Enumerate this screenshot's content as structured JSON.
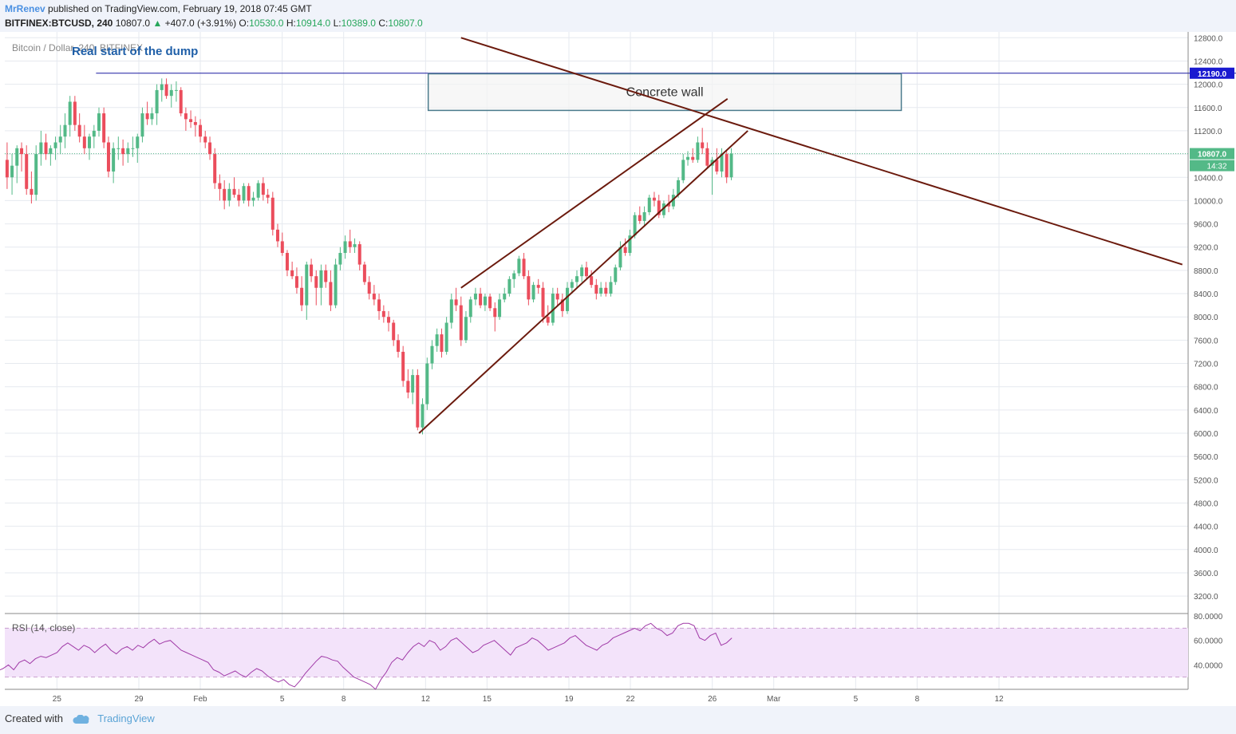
{
  "header": {
    "author": "MrRenev",
    "published": "published on TradingView.com, February 19, 2018 07:45 GMT",
    "symbol": "BITFINEX:BTCUSD, 240",
    "last": "10807.0",
    "change": "+407.0 (+3.91%)",
    "open_label": "O:",
    "open": "10530.0",
    "high_label": "H:",
    "high": "10914.0",
    "low_label": "L:",
    "low": "10389.0",
    "close_label": "C:",
    "close": "10807.0"
  },
  "footer": {
    "created": "Created with",
    "brand": "TradingView",
    "logo_icon": "tradingview-cloud-icon"
  },
  "chart_data": {
    "type": "candlestick",
    "symbol_label": "Bitcoin / Dollar, 240, BITFINEX",
    "ylim": [
      2900,
      12900
    ],
    "y_ticks": [
      "12800.0",
      "12400.0",
      "12000.0",
      "11600.0",
      "11200.0",
      "10800.0",
      "10400.0",
      "10000.0",
      "9600.0",
      "9200.0",
      "8800.0",
      "8400.0",
      "8000.0",
      "7600.0",
      "7200.0",
      "6800.0",
      "6400.0",
      "6000.0",
      "5600.0",
      "5200.0",
      "4800.0",
      "4400.0",
      "4000.0",
      "3600.0",
      "3200.0"
    ],
    "x_ticks": [
      "25",
      "29",
      "Feb",
      "5",
      "8",
      "12",
      "15",
      "19",
      "22",
      "26",
      "Mar",
      "5",
      "8",
      "12"
    ],
    "x_range_days": [
      -1.75,
      39.1
    ],
    "last_price": 10807.0,
    "last_price_label": "10807.0",
    "countdown_label": "14:32",
    "resistance_level": 12190.0,
    "resistance_label": "12190.0",
    "colors": {
      "up": "#53b987",
      "down": "#eb4d5c",
      "trend": "#6b1a0d",
      "resistance": "#1a1aa0",
      "rsi": "#a03aa7",
      "rsi_band": "#f3e3fa"
    },
    "candles": [
      [
        -2.0,
        10600,
        11400,
        10100,
        10900
      ],
      [
        -1.83,
        10900,
        11100,
        10500,
        10700
      ],
      [
        -1.67,
        10700,
        11000,
        10200,
        10400
      ],
      [
        -1.5,
        10400,
        10800,
        10100,
        10600
      ],
      [
        -1.33,
        10600,
        10950,
        10300,
        10900
      ],
      [
        -1.17,
        10900,
        11000,
        10500,
        10800
      ],
      [
        -1.0,
        10800,
        10950,
        10100,
        10200
      ],
      [
        -0.83,
        10200,
        10500,
        9950,
        10100
      ],
      [
        -0.67,
        10100,
        10950,
        10000,
        10800
      ],
      [
        -0.5,
        10800,
        11200,
        10600,
        11000
      ],
      [
        -0.33,
        11000,
        11150,
        10700,
        10800
      ],
      [
        -0.17,
        10800,
        10950,
        10600,
        10900
      ],
      [
        0.0,
        10900,
        11100,
        10700,
        11000
      ],
      [
        0.17,
        11000,
        11300,
        10800,
        11100
      ],
      [
        0.33,
        11100,
        11500,
        10900,
        11300
      ],
      [
        0.5,
        11300,
        11800,
        11100,
        11700
      ],
      [
        0.67,
        11700,
        11800,
        11200,
        11300
      ],
      [
        0.83,
        11300,
        11500,
        11000,
        11100
      ],
      [
        1.0,
        11100,
        11300,
        10800,
        10900
      ],
      [
        1.17,
        10900,
        11150,
        10700,
        11100
      ],
      [
        1.33,
        11100,
        11300,
        10900,
        11200
      ],
      [
        1.5,
        11200,
        11600,
        11100,
        11500
      ],
      [
        1.67,
        11500,
        11600,
        10900,
        11000
      ],
      [
        1.83,
        11000,
        11100,
        10400,
        10500
      ],
      [
        2.0,
        10500,
        11000,
        10300,
        10900
      ],
      [
        2.17,
        10900,
        11100,
        10700,
        10900
      ],
      [
        2.33,
        10900,
        11050,
        10600,
        10800
      ],
      [
        2.5,
        10800,
        11000,
        10650,
        10900
      ],
      [
        2.67,
        10900,
        11100,
        10750,
        10900
      ],
      [
        2.83,
        10900,
        11150,
        10650,
        11100
      ],
      [
        3.0,
        11100,
        11600,
        11000,
        11500
      ],
      [
        3.17,
        11500,
        11700,
        11300,
        11400
      ],
      [
        3.33,
        11400,
        11600,
        11300,
        11500
      ],
      [
        3.5,
        11500,
        12000,
        11300,
        11900
      ],
      [
        3.67,
        11900,
        12100,
        11700,
        12000
      ],
      [
        3.83,
        12000,
        12100,
        11750,
        11800
      ],
      [
        4.0,
        11800,
        12000,
        11600,
        11900
      ],
      [
        4.17,
        11900,
        12050,
        11700,
        11900
      ],
      [
        4.33,
        11900,
        11950,
        11450,
        11500
      ],
      [
        4.5,
        11500,
        11600,
        11200,
        11400
      ],
      [
        4.67,
        11400,
        11550,
        11250,
        11350
      ],
      [
        4.83,
        11350,
        11450,
        11100,
        11300
      ],
      [
        5.0,
        11300,
        11400,
        11000,
        11100
      ],
      [
        5.17,
        11100,
        11200,
        10900,
        11000
      ],
      [
        5.33,
        11000,
        11100,
        10700,
        10800
      ],
      [
        5.5,
        10800,
        10900,
        10200,
        10300
      ],
      [
        5.67,
        10300,
        10450,
        10000,
        10200
      ],
      [
        5.83,
        10200,
        10350,
        9850,
        10000
      ],
      [
        6.0,
        10000,
        10300,
        9900,
        10200
      ],
      [
        6.17,
        10200,
        10400,
        10050,
        10100
      ],
      [
        6.33,
        10100,
        10200,
        9900,
        10000
      ],
      [
        6.5,
        10000,
        10300,
        9950,
        10250
      ],
      [
        6.67,
        10250,
        10300,
        9900,
        10000
      ],
      [
        6.83,
        10000,
        10150,
        9900,
        10050
      ],
      [
        7.0,
        10050,
        10350,
        10000,
        10300
      ],
      [
        7.17,
        10300,
        10400,
        10000,
        10100
      ],
      [
        7.33,
        10100,
        10200,
        9950,
        10050
      ],
      [
        7.5,
        10050,
        10150,
        9400,
        9500
      ],
      [
        7.67,
        9500,
        9600,
        9200,
        9300
      ],
      [
        7.83,
        9300,
        9450,
        9050,
        9100
      ],
      [
        8.0,
        9100,
        9150,
        8700,
        8800
      ],
      [
        8.17,
        8800,
        8950,
        8650,
        8700
      ],
      [
        8.33,
        8700,
        8850,
        8400,
        8500
      ],
      [
        8.5,
        8500,
        8700,
        8100,
        8200
      ],
      [
        8.67,
        8200,
        8950,
        7950,
        8900
      ],
      [
        8.83,
        8900,
        9000,
        8600,
        8700
      ],
      [
        9.0,
        8700,
        8800,
        8200,
        8500
      ],
      [
        9.17,
        8500,
        8900,
        8200,
        8800
      ],
      [
        9.33,
        8800,
        8900,
        8500,
        8600
      ],
      [
        9.5,
        8600,
        8800,
        8100,
        8200
      ],
      [
        9.67,
        8200,
        9000,
        8150,
        8900
      ],
      [
        9.83,
        8900,
        9200,
        8800,
        9100
      ],
      [
        10.0,
        9100,
        9400,
        9000,
        9300
      ],
      [
        10.17,
        9300,
        9500,
        9100,
        9200
      ],
      [
        10.33,
        9200,
        9350,
        9100,
        9250
      ],
      [
        10.5,
        9250,
        9300,
        8800,
        8900
      ],
      [
        10.67,
        8900,
        8950,
        8550,
        8600
      ],
      [
        10.83,
        8600,
        8700,
        8300,
        8400
      ],
      [
        11.0,
        8400,
        8550,
        8200,
        8300
      ],
      [
        11.17,
        8300,
        8400,
        7950,
        8100
      ],
      [
        11.33,
        8100,
        8200,
        7900,
        8000
      ],
      [
        11.5,
        8000,
        8100,
        7750,
        7900
      ],
      [
        11.67,
        7900,
        7950,
        7500,
        7600
      ],
      [
        11.83,
        7600,
        7700,
        7300,
        7400
      ],
      [
        12.0,
        7400,
        7500,
        6800,
        6900
      ],
      [
        12.17,
        6900,
        7100,
        6600,
        6700
      ],
      [
        12.33,
        6700,
        7100,
        6500,
        7000
      ],
      [
        12.5,
        7000,
        7100,
        6050,
        6100
      ],
      [
        12.67,
        6100,
        6600,
        5980,
        6500
      ],
      [
        12.83,
        6500,
        7300,
        6400,
        7200
      ],
      [
        13.0,
        7200,
        7600,
        7100,
        7500
      ],
      [
        13.17,
        7500,
        7800,
        7400,
        7700
      ],
      [
        13.33,
        7700,
        7800,
        7300,
        7400
      ],
      [
        13.5,
        7400,
        8000,
        7350,
        7900
      ],
      [
        13.67,
        7900,
        8400,
        7800,
        8300
      ],
      [
        13.83,
        8300,
        8500,
        8100,
        8200
      ],
      [
        14.0,
        8200,
        8350,
        7500,
        7600
      ],
      [
        14.17,
        7600,
        8100,
        7550,
        8000
      ],
      [
        14.33,
        8000,
        8350,
        7900,
        8300
      ],
      [
        14.5,
        8300,
        8500,
        8200,
        8400
      ],
      [
        14.67,
        8400,
        8500,
        8150,
        8200
      ],
      [
        14.83,
        8200,
        8400,
        8100,
        8350
      ],
      [
        15.0,
        8350,
        8400,
        8100,
        8150
      ],
      [
        15.17,
        8150,
        8250,
        7750,
        8000
      ],
      [
        15.33,
        8000,
        8400,
        7950,
        8300
      ],
      [
        15.5,
        8300,
        8500,
        8250,
        8400
      ],
      [
        15.67,
        8400,
        8700,
        8350,
        8650
      ],
      [
        15.83,
        8650,
        8800,
        8500,
        8750
      ],
      [
        16.0,
        8750,
        9050,
        8700,
        9000
      ],
      [
        16.17,
        9000,
        9100,
        8650,
        8700
      ],
      [
        16.33,
        8700,
        8800,
        8200,
        8300
      ],
      [
        16.5,
        8300,
        8600,
        8250,
        8550
      ],
      [
        16.67,
        8550,
        8650,
        8400,
        8500
      ],
      [
        16.83,
        8500,
        8600,
        7900,
        8000
      ],
      [
        17.0,
        8000,
        8200,
        7850,
        7900
      ],
      [
        17.17,
        7900,
        8500,
        7850,
        8400
      ],
      [
        17.33,
        8400,
        8500,
        8200,
        8300
      ],
      [
        17.5,
        8300,
        8400,
        8000,
        8100
      ],
      [
        17.67,
        8100,
        8600,
        8050,
        8500
      ],
      [
        17.83,
        8500,
        8650,
        8400,
        8600
      ],
      [
        18.0,
        8600,
        8800,
        8500,
        8700
      ],
      [
        18.17,
        8700,
        8900,
        8600,
        8850
      ],
      [
        18.33,
        8850,
        8950,
        8650,
        8700
      ],
      [
        18.5,
        8700,
        8800,
        8500,
        8550
      ],
      [
        18.67,
        8550,
        8650,
        8300,
        8400
      ],
      [
        18.83,
        8400,
        8600,
        8350,
        8500
      ],
      [
        19.0,
        8500,
        8600,
        8350,
        8400
      ],
      [
        19.17,
        8400,
        8700,
        8350,
        8600
      ],
      [
        19.33,
        8600,
        8900,
        8550,
        8850
      ],
      [
        19.5,
        8850,
        9300,
        8800,
        9200
      ],
      [
        19.67,
        9200,
        9350,
        9050,
        9100
      ],
      [
        19.83,
        9100,
        9500,
        9050,
        9400
      ],
      [
        20.0,
        9400,
        9800,
        9350,
        9750
      ],
      [
        20.17,
        9750,
        9900,
        9600,
        9650
      ],
      [
        20.33,
        9650,
        9900,
        9550,
        9800
      ],
      [
        20.5,
        9800,
        10100,
        9750,
        10050
      ],
      [
        20.67,
        10050,
        10150,
        9900,
        10000
      ],
      [
        20.83,
        10000,
        10100,
        9700,
        9750
      ],
      [
        21.0,
        9750,
        10000,
        9700,
        9950
      ],
      [
        21.17,
        9950,
        10100,
        9800,
        9900
      ],
      [
        21.33,
        9900,
        10200,
        9850,
        10100
      ],
      [
        21.5,
        10100,
        10400,
        10050,
        10350
      ],
      [
        21.67,
        10350,
        10800,
        10300,
        10700
      ],
      [
        21.83,
        10700,
        10850,
        10600,
        10750
      ],
      [
        22.0,
        10750,
        10900,
        10650,
        10700
      ],
      [
        22.17,
        10700,
        11100,
        10650,
        11000
      ],
      [
        22.33,
        11000,
        11250,
        10800,
        10900
      ],
      [
        22.5,
        10900,
        11000,
        10550,
        10600
      ],
      [
        22.67,
        10600,
        10750,
        10100,
        10700
      ],
      [
        22.83,
        10700,
        10900,
        10450,
        10500
      ],
      [
        23.0,
        10500,
        10900,
        10400,
        10800
      ],
      [
        23.17,
        10800,
        10850,
        10300,
        10400
      ],
      [
        23.33,
        10400,
        10900,
        10350,
        10807
      ]
    ],
    "trend_lines": [
      {
        "x1": 12.55,
        "y1": 6000,
        "x2": 23.9,
        "y2": 11200
      },
      {
        "x1": 14.0,
        "y1": 8500,
        "x2": 23.2,
        "y2": 11750
      },
      {
        "x1": 14.0,
        "y1": 12800,
        "x2": 38.9,
        "y2": 8900
      }
    ],
    "annotations": [
      {
        "text": "Real start of the dump",
        "x": -1.5,
        "y": 12500,
        "color": "#1f5fa8"
      },
      {
        "text": "Concrete wall",
        "x0": 18.2,
        "y0": 11550,
        "x1": 41.3,
        "y1": 12180
      }
    ],
    "rsi": {
      "label": "RSI (14, close)",
      "ylim": [
        20,
        82
      ],
      "y_ticks": [
        "80.0000",
        "60.0000",
        "40.0000"
      ],
      "upper": 70,
      "lower": 30,
      "values": [
        35,
        37,
        40,
        36,
        42,
        44,
        41,
        45,
        47,
        46,
        48,
        50,
        55,
        58,
        55,
        52,
        56,
        54,
        50,
        54,
        57,
        52,
        49,
        53,
        55,
        52,
        56,
        54,
        58,
        61,
        57,
        59,
        60,
        56,
        52,
        50,
        48,
        46,
        44,
        42,
        36,
        34,
        31,
        33,
        35,
        32,
        30,
        34,
        37,
        35,
        31,
        28,
        26,
        28,
        24,
        22,
        27,
        33,
        38,
        43,
        47,
        46,
        44,
        43,
        38,
        34,
        30,
        28,
        26,
        24,
        20,
        28,
        34,
        42,
        46,
        44,
        50,
        55,
        58,
        55,
        60,
        58,
        52,
        55,
        60,
        62,
        58,
        54,
        50,
        52,
        56,
        58,
        60,
        56,
        52,
        48,
        54,
        56,
        58,
        62,
        60,
        56,
        52,
        54,
        56,
        58,
        62,
        64,
        60,
        56,
        54,
        52,
        56,
        58,
        62,
        64,
        66,
        68,
        70,
        68,
        72,
        74,
        70,
        68,
        64,
        66,
        72,
        74,
        74,
        72,
        62,
        60,
        64,
        66,
        56,
        58,
        62
      ]
    }
  }
}
